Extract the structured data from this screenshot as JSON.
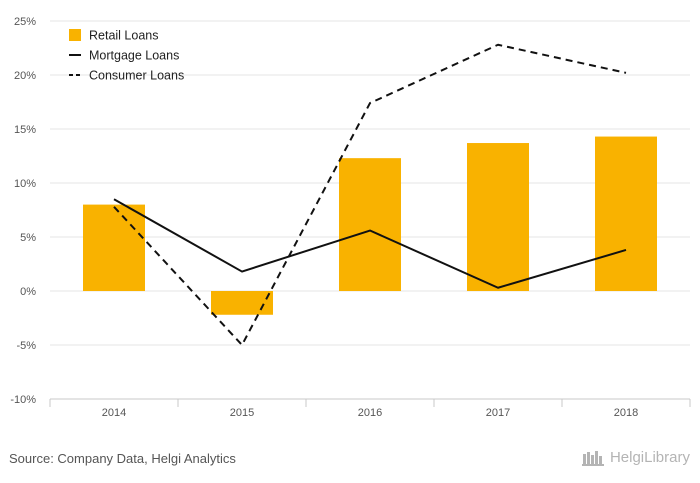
{
  "chart_data": {
    "type": "bar",
    "categories": [
      "2014",
      "2015",
      "2016",
      "2017",
      "2018"
    ],
    "series": [
      {
        "name": "Retail Loans",
        "kind": "bar",
        "color": "#f9b200",
        "values": [
          8.0,
          -2.2,
          12.3,
          13.7,
          14.3
        ]
      },
      {
        "name": "Mortgage Loans",
        "kind": "line",
        "dash": "solid",
        "color": "#111111",
        "values": [
          8.5,
          1.8,
          5.6,
          0.3,
          3.8
        ]
      },
      {
        "name": "Consumer Loans",
        "kind": "line",
        "dash": "dashed",
        "color": "#111111",
        "values": [
          7.8,
          -5.0,
          17.4,
          22.8,
          20.2
        ]
      }
    ],
    "ylim": [
      -10,
      25
    ],
    "yticks": [
      -10,
      -5,
      0,
      5,
      10,
      15,
      20,
      25
    ],
    "ytick_format": "percent",
    "legend_position": "top-left",
    "grid": true
  },
  "footer": {
    "source": "Source: Company Data, Helgi Analytics",
    "logo_text": "HelgiLibrary"
  }
}
